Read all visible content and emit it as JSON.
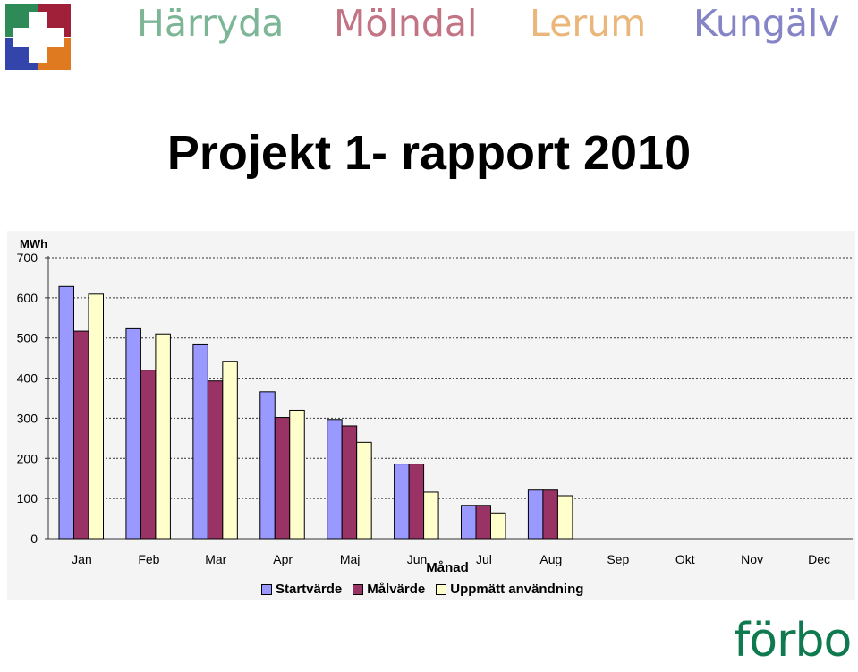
{
  "header": {
    "municipalities": [
      {
        "name": "Härryda",
        "color": "#2e8b57"
      },
      {
        "name": "Mölndal",
        "color": "#a0203a"
      },
      {
        "name": "Lerum",
        "color": "#e08a2a"
      },
      {
        "name": "Kungälv",
        "color": "#3a3aa6"
      }
    ],
    "logo_colors": [
      "#2e8b57",
      "#a0203a",
      "#3344aa",
      "#e07a20"
    ]
  },
  "title": "Projekt 1- rapport 2010",
  "footer_logo": "förbo",
  "chart_data": {
    "type": "bar",
    "ylabel": "MWh",
    "xlabel": "Månad",
    "ylim": [
      0,
      700
    ],
    "yticks": [
      0,
      100,
      200,
      300,
      400,
      500,
      600,
      700
    ],
    "grid": true,
    "legend_position": "bottom",
    "categories": [
      "Jan",
      "Feb",
      "Mar",
      "Apr",
      "Maj",
      "Jun",
      "Jul",
      "Aug",
      "Sep",
      "Okt",
      "Nov",
      "Dec"
    ],
    "series": [
      {
        "name": "Startvärde",
        "color": "#9999ff",
        "values": [
          628,
          523,
          485,
          366,
          297,
          186,
          83,
          121,
          null,
          null,
          null,
          null
        ]
      },
      {
        "name": "Målvärde",
        "color": "#993366",
        "values": [
          517,
          420,
          393,
          302,
          281,
          186,
          83,
          121,
          null,
          null,
          null,
          null
        ]
      },
      {
        "name": "Uppmätt användning",
        "color": "#ffffcc",
        "values": [
          609,
          510,
          442,
          320,
          240,
          116,
          64,
          107,
          null,
          null,
          null,
          null
        ]
      }
    ]
  }
}
